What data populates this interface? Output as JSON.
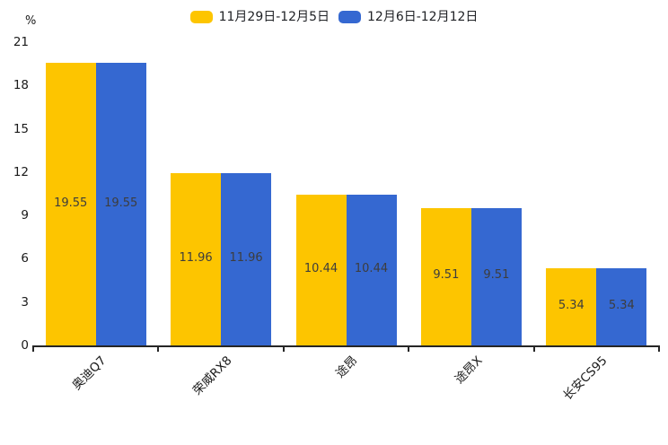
{
  "chart_data": {
    "type": "bar",
    "title": "",
    "categories": [
      "奥迪Q7",
      "荣威RX8",
      "途昂",
      "途昂X",
      "长安CS95"
    ],
    "series": [
      {
        "name": "11月29日-12月5日",
        "color": "#FDC500",
        "values": [
          19.55,
          11.96,
          10.44,
          9.51,
          5.34
        ]
      },
      {
        "name": "12月6日-12月12日",
        "color": "#3568D1",
        "values": [
          19.55,
          11.96,
          10.44,
          9.51,
          5.34
        ]
      }
    ],
    "xlabel": "",
    "ylabel": "%",
    "ylim": [
      0,
      21
    ],
    "yticks": [
      0,
      3,
      6,
      9,
      12,
      15,
      18,
      21
    ],
    "grid": false,
    "legend_position": "top-center",
    "value_labels": "centered-inside-bars",
    "colors": {
      "axis": "#262626",
      "tick_text": "#1a1a1a",
      "value_label_text": "#3d3d3d",
      "background": "#ffffff"
    }
  }
}
